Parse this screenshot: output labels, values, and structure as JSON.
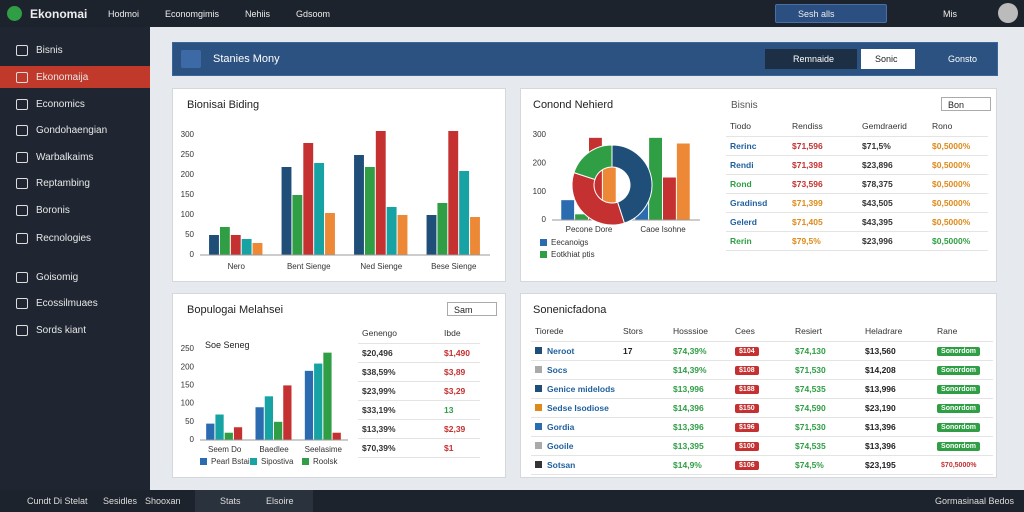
{
  "topbar": {
    "brand": "Ekonomai",
    "nav": [
      "Hodmoi",
      "Economgimis",
      "Nehiis",
      "Gdsoom"
    ],
    "search": "Sesh alls",
    "user": "Mis"
  },
  "sidebar": [
    "Bisnis",
    "Ekonomaija",
    "Economics",
    "Gondohaengian",
    "Warbalkaims",
    "Reptambing",
    "Boronis",
    "Recnologies",
    "Goisomig",
    "Ecossilmuaes",
    "Sords kiant"
  ],
  "header": {
    "title": "Stanies Mony",
    "actions": [
      "Remnaide",
      "Sonic",
      "Gonsto"
    ]
  },
  "panels": [
    {
      "title": "Bionisai Biding"
    },
    {
      "title": "Conond Nehierd",
      "subtitle": "Bisnis",
      "search": "Bon",
      "table": {
        "header": [
          "Tiodo",
          "Rendiss",
          "Gemdraerid",
          "Rono"
        ],
        "rows": [
          [
            "Rerinc",
            "$71,596",
            "$71,5%",
            "$0,5000%"
          ],
          [
            "Rendi",
            "$71,398",
            "$23,896",
            "$0,5000%"
          ],
          [
            "Rond",
            "$73,596",
            "$78,375",
            "$0,5000%"
          ],
          [
            "Gradinsd",
            "$71,399",
            "$43,505",
            "$0,5000%"
          ],
          [
            "Gelerd",
            "$71,405",
            "$43,395",
            "$0,5000%"
          ],
          [
            "Rerin",
            "$79,5%",
            "$23,996",
            "$0,5000%"
          ]
        ]
      }
    },
    {
      "title": "Bopulogai Melahsei",
      "search": "Sam",
      "note": "Soe Seneg",
      "table": {
        "header": [
          "Genengo",
          "Ibde"
        ],
        "rows": [
          [
            "$20,496",
            "$1,490"
          ],
          [
            "$38,59%",
            "$3,89"
          ],
          [
            "$23,99%",
            "$3,29"
          ],
          [
            "$33,19%",
            "13"
          ],
          [
            "$13,39%",
            "$2,39"
          ],
          [
            "$70,39%",
            "$1"
          ]
        ]
      }
    },
    {
      "title": "Sonenicfadona",
      "table": {
        "header": [
          "Tiorede",
          "Stors",
          "Hosssioe",
          "Cees",
          "Resiert",
          "Heladrare",
          "Rane"
        ],
        "rows": [
          [
            "Neroot",
            "17",
            "$74,39%",
            "$104",
            "$74,130",
            "$13,560",
            "Sonordom"
          ],
          [
            "Socs",
            "",
            "$14,39%",
            "$108",
            "$71,530",
            "$14,208",
            "Sonordom"
          ],
          [
            "Genice midelods",
            "",
            "$13,996",
            "$188",
            "$74,535",
            "$13,996",
            "Sonordom"
          ],
          [
            "Sedse Isodiose",
            "",
            "$14,396",
            "$150",
            "$74,590",
            "$23,190",
            "Sonordom"
          ],
          [
            "Gordia",
            "",
            "$13,396",
            "$196",
            "$71,530",
            "$13,396",
            "Sonordom"
          ],
          [
            "Gooile",
            "",
            "$13,395",
            "$100",
            "$74,535",
            "$13,396",
            "Sonordom"
          ],
          [
            "Sotsan",
            "",
            "$14,9%",
            "$106",
            "$74,5%",
            "$23,195",
            "$70,5000%"
          ]
        ]
      }
    }
  ],
  "chart_data": [
    {
      "type": "bar",
      "categories": [
        "Nero",
        "Bent Sienge",
        "Ned Sienge",
        "Bese Sienge"
      ],
      "series": [
        {
          "color": "#1f4e79",
          "values": [
            50,
            220,
            250,
            100
          ]
        },
        {
          "color": "#2f9e44",
          "values": [
            70,
            150,
            220,
            130
          ]
        },
        {
          "color": "#c53030",
          "values": [
            50,
            280,
            310,
            310
          ]
        },
        {
          "color": "#17a2a4",
          "values": [
            40,
            230,
            120,
            210
          ]
        },
        {
          "color": "#ed8936",
          "values": [
            30,
            105,
            100,
            95
          ]
        }
      ],
      "ylim": [
        0,
        300
      ],
      "yticks": [
        0,
        50,
        100,
        150,
        200,
        250,
        300
      ],
      "grid": false
    },
    {
      "type": "pie",
      "values": [
        45,
        35,
        20
      ],
      "colors": [
        "#1f4e79",
        "#c53030",
        "#2f9e44"
      ]
    },
    {
      "type": "bar",
      "categories": [
        "Pecone Dore",
        "Caoe Isohne"
      ],
      "series": [
        {
          "name": "Eecanoigs",
          "color": "#2b6cb0",
          "values": [
            70,
            120
          ]
        },
        {
          "name": "Eotkhiat ptis",
          "color": "#2f9e44",
          "values": [
            20,
            290
          ]
        },
        {
          "color": "#c53030",
          "values": [
            290,
            150
          ]
        },
        {
          "color": "#ed8936",
          "values": [
            250,
            270
          ]
        }
      ],
      "ylim": [
        0,
        300
      ],
      "yticks": [
        0,
        100,
        200,
        300
      ],
      "grid": false
    },
    {
      "type": "bar",
      "categories": [
        "Seem Do",
        "Baedlee",
        "Seelasime"
      ],
      "series": [
        {
          "name": "Pearl Bstai",
          "color": "#2b6cb0",
          "values": [
            45,
            90,
            190
          ]
        },
        {
          "name": "Sipostiva",
          "color": "#17a2a4",
          "values": [
            70,
            120,
            210
          ]
        },
        {
          "name": "Roolsk",
          "color": "#2f9e44",
          "values": [
            20,
            50,
            240
          ]
        },
        {
          "color": "#c53030",
          "values": [
            35,
            150,
            20
          ]
        }
      ],
      "ylim": [
        0,
        250
      ],
      "yticks": [
        0,
        50,
        100,
        150,
        200,
        250
      ],
      "grid": false
    }
  ],
  "footer": {
    "left": [
      "Cundt Di Stelat",
      "Sesidles",
      "Shooxan"
    ],
    "tabs": [
      "Stats",
      "Elsoire"
    ],
    "right": "Gormasinaal Bedos"
  }
}
